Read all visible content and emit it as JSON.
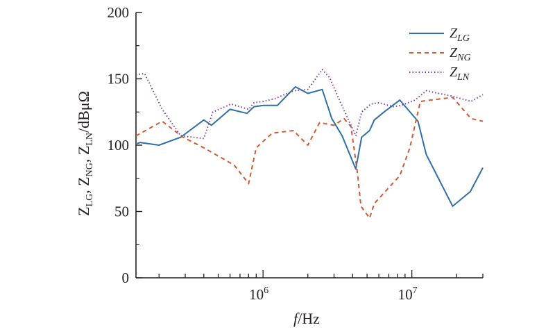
{
  "chart_data": {
    "type": "line",
    "xscale": "log",
    "xlim": [
      140000,
      30000000
    ],
    "ylim": [
      0,
      200
    ],
    "xlabel": {
      "italic": "f",
      "rest": "/Hz"
    },
    "ylabel": {
      "parts": [
        {
          "text": "Z",
          "sub": "LG"
        },
        {
          "text": ", Z",
          "sub": "NG"
        },
        {
          "text": ", Z",
          "sub": "LN"
        },
        {
          "text": "/dBμΩ",
          "sub": ""
        }
      ]
    },
    "x_ticks": [
      {
        "value": 1000000,
        "base": "10",
        "exp": "6"
      },
      {
        "value": 10000000,
        "base": "10",
        "exp": "7"
      }
    ],
    "y_ticks": [
      {
        "value": 0,
        "label": "0"
      },
      {
        "value": 50,
        "label": "50"
      },
      {
        "value": 100,
        "label": "100"
      },
      {
        "value": 150,
        "label": "150"
      },
      {
        "value": 200,
        "label": "200"
      }
    ],
    "legend_position": "top-right",
    "grid": false,
    "series": [
      {
        "id": "zlg",
        "name": "Z",
        "name_sub": "LG",
        "color": "#2e6fa6",
        "dash": "",
        "points": [
          [
            140000,
            101
          ],
          [
            150000,
            102
          ],
          [
            200000,
            100
          ],
          [
            280000,
            106
          ],
          [
            400000,
            119
          ],
          [
            450000,
            115
          ],
          [
            600000,
            127
          ],
          [
            780000,
            124
          ],
          [
            870000,
            129
          ],
          [
            1000000,
            130
          ],
          [
            1250000,
            130
          ],
          [
            1650000,
            144
          ],
          [
            2000000,
            139
          ],
          [
            2500000,
            142
          ],
          [
            2900000,
            120
          ],
          [
            3400000,
            107
          ],
          [
            4200000,
            82
          ],
          [
            4600000,
            106
          ],
          [
            5200000,
            111
          ],
          [
            5600000,
            119
          ],
          [
            6500000,
            125
          ],
          [
            8300000,
            134
          ],
          [
            11000000,
            118
          ],
          [
            12500000,
            93
          ],
          [
            18800000,
            54
          ],
          [
            24700000,
            65
          ],
          [
            30000000,
            83
          ]
        ]
      },
      {
        "id": "zng",
        "name": "Z",
        "name_sub": "NG",
        "color": "#cc5a33",
        "dash": "6,5",
        "points": [
          [
            140000,
            107
          ],
          [
            210000,
            118
          ],
          [
            290000,
            106
          ],
          [
            400000,
            98
          ],
          [
            640000,
            85
          ],
          [
            800000,
            71
          ],
          [
            900000,
            98
          ],
          [
            1150000,
            109
          ],
          [
            1600000,
            111
          ],
          [
            2000000,
            100
          ],
          [
            2400000,
            117
          ],
          [
            3000000,
            115
          ],
          [
            3500000,
            120
          ],
          [
            3900000,
            114
          ],
          [
            4300000,
            80
          ],
          [
            4550000,
            54
          ],
          [
            5200000,
            45
          ],
          [
            5600000,
            56
          ],
          [
            8300000,
            77
          ],
          [
            9700000,
            98
          ],
          [
            11400000,
            133
          ],
          [
            18800000,
            136
          ],
          [
            25000000,
            120
          ],
          [
            30000000,
            118
          ]
        ]
      },
      {
        "id": "zln",
        "name": "Z",
        "name_sub": "LN",
        "color": "#7b3f9a",
        "dash": "1.5,3",
        "points": [
          [
            140000,
            153
          ],
          [
            160000,
            154
          ],
          [
            210000,
            127
          ],
          [
            280000,
            107
          ],
          [
            400000,
            105
          ],
          [
            460000,
            125
          ],
          [
            610000,
            131
          ],
          [
            800000,
            127
          ],
          [
            870000,
            132
          ],
          [
            1000000,
            133
          ],
          [
            1200000,
            135
          ],
          [
            1600000,
            141
          ],
          [
            2000000,
            142
          ],
          [
            2500000,
            157
          ],
          [
            2800000,
            151
          ],
          [
            3200000,
            136
          ],
          [
            4200000,
            107
          ],
          [
            4600000,
            125
          ],
          [
            5300000,
            131
          ],
          [
            6000000,
            132
          ],
          [
            7500000,
            129
          ],
          [
            8500000,
            130
          ],
          [
            10500000,
            134
          ],
          [
            12500000,
            141
          ],
          [
            18500000,
            137
          ],
          [
            25000000,
            133
          ],
          [
            30000000,
            138
          ]
        ]
      }
    ]
  }
}
